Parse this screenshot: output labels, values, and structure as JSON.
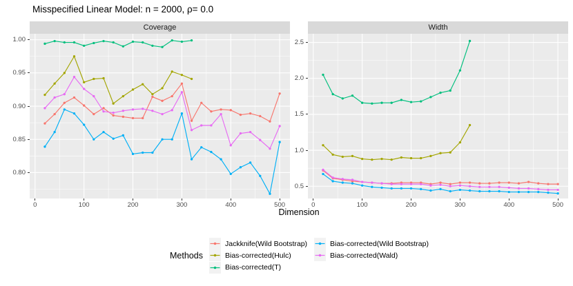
{
  "title": "Misspecified Linear Model: n = 2000, ρ= 0.0",
  "x_axis_title": "Dimension",
  "colors": {
    "panel_bg": "#EBEBEB",
    "strip_bg": "#D9D9D9",
    "grid": "#FFFFFF",
    "tick_text": "#4D4D4D",
    "tick_mark": "#333333"
  },
  "legend": {
    "title": "Methods",
    "columns": [
      [
        0,
        1,
        2
      ],
      [
        3,
        4
      ]
    ],
    "items": [
      {
        "label": "Jackknife(Wild Bootstrap)",
        "color": "#F8766D"
      },
      {
        "label": "Bias-corrected(Hulc)",
        "color": "#A3A500"
      },
      {
        "label": "Bias-corrected(T)",
        "color": "#00BF7D"
      },
      {
        "label": "Bias-corrected(Wild Bootstrap)",
        "color": "#00B0F6"
      },
      {
        "label": "Bias-corrected(Wald)",
        "color": "#E76BF3"
      }
    ]
  },
  "chart_data": [
    {
      "type": "line",
      "title": "Coverage",
      "xlabel": "Dimension",
      "xlim": [
        -11,
        521
      ],
      "ylim": [
        0.761,
        1.009
      ],
      "x_ticks": [
        0,
        100,
        200,
        300,
        400,
        500
      ],
      "x_tick_labels": [
        "0",
        "100",
        "200",
        "300",
        "400",
        "500"
      ],
      "x_minor": [
        50,
        150,
        250,
        350,
        450
      ],
      "y_ticks": [
        0.8,
        0.85,
        0.9,
        0.95,
        1.0
      ],
      "y_tick_labels": [
        "0.80",
        "0.85",
        "0.90",
        "0.95",
        "1.00"
      ],
      "y_minor": [
        0.775,
        0.825,
        0.875,
        0.925,
        0.975
      ],
      "grid": true,
      "series": [
        {
          "name": "Jackknife(Wild Bootstrap)",
          "color": "#F8766D",
          "x": [
            20,
            40,
            60,
            80,
            100,
            120,
            140,
            160,
            180,
            200,
            220,
            240,
            260,
            280,
            300,
            320,
            340,
            360,
            380,
            400,
            420,
            440,
            460,
            480,
            500
          ],
          "values": [
            0.874,
            0.888,
            0.905,
            0.913,
            0.901,
            0.888,
            0.897,
            0.886,
            0.884,
            0.882,
            0.882,
            0.914,
            0.908,
            0.915,
            0.934,
            0.878,
            0.905,
            0.892,
            0.895,
            0.894,
            0.887,
            0.889,
            0.885,
            0.877,
            0.919
          ]
        },
        {
          "name": "Bias-corrected(Hulc)",
          "color": "#A3A500",
          "x": [
            20,
            40,
            60,
            80,
            100,
            120,
            140,
            160,
            180,
            200,
            220,
            240,
            260,
            280,
            300,
            320
          ],
          "values": [
            0.917,
            0.934,
            0.95,
            0.975,
            0.936,
            0.941,
            0.942,
            0.904,
            0.915,
            0.925,
            0.933,
            0.918,
            0.927,
            0.952,
            0.947,
            0.941
          ]
        },
        {
          "name": "Bias-corrected(T)",
          "color": "#00BF7D",
          "x": [
            20,
            40,
            60,
            80,
            100,
            120,
            140,
            160,
            180,
            200,
            220,
            240,
            260,
            280,
            300,
            320
          ],
          "values": [
            0.994,
            0.998,
            0.996,
            0.996,
            0.991,
            0.995,
            0.998,
            0.996,
            0.99,
            0.997,
            0.996,
            0.991,
            0.989,
            0.999,
            0.997,
            0.999
          ]
        },
        {
          "name": "Bias-corrected(Wild Bootstrap)",
          "color": "#00B0F6",
          "x": [
            20,
            40,
            60,
            80,
            100,
            120,
            140,
            160,
            180,
            200,
            220,
            240,
            260,
            280,
            300,
            320,
            340,
            360,
            380,
            400,
            420,
            440,
            460,
            480,
            500
          ],
          "values": [
            0.839,
            0.861,
            0.895,
            0.889,
            0.872,
            0.85,
            0.861,
            0.851,
            0.856,
            0.828,
            0.83,
            0.83,
            0.85,
            0.85,
            0.889,
            0.82,
            0.838,
            0.831,
            0.82,
            0.798,
            0.808,
            0.815,
            0.795,
            0.768,
            0.846
          ]
        },
        {
          "name": "Bias-corrected(Wald)",
          "color": "#E76BF3",
          "x": [
            20,
            40,
            60,
            80,
            100,
            120,
            140,
            160,
            180,
            200,
            220,
            240,
            260,
            280,
            300,
            320,
            340,
            360,
            380,
            400,
            420,
            440,
            460,
            480,
            500
          ],
          "values": [
            0.897,
            0.913,
            0.918,
            0.944,
            0.926,
            0.915,
            0.892,
            0.89,
            0.893,
            0.895,
            0.896,
            0.893,
            0.888,
            0.894,
            0.921,
            0.864,
            0.871,
            0.871,
            0.888,
            0.841,
            0.859,
            0.861,
            0.849,
            0.836,
            0.87
          ]
        }
      ]
    },
    {
      "type": "line",
      "title": "Width",
      "xlabel": "Dimension",
      "xlim": [
        -11,
        521
      ],
      "ylim": [
        0.33,
        2.62
      ],
      "x_ticks": [
        0,
        100,
        200,
        300,
        400,
        500
      ],
      "x_tick_labels": [
        "0",
        "100",
        "200",
        "300",
        "400",
        "500"
      ],
      "x_minor": [
        50,
        150,
        250,
        350,
        450
      ],
      "y_ticks": [
        0.5,
        1.0,
        1.5,
        2.0,
        2.5
      ],
      "y_tick_labels": [
        "0.5",
        "1.0",
        "1.5",
        "2.0",
        "2.5"
      ],
      "y_minor": [
        0.75,
        1.25,
        1.75,
        2.25
      ],
      "grid": true,
      "series": [
        {
          "name": "Jackknife(Wild Bootstrap)",
          "color": "#F8766D",
          "x": [
            20,
            40,
            60,
            80,
            100,
            120,
            140,
            160,
            180,
            200,
            220,
            240,
            260,
            280,
            300,
            320,
            340,
            360,
            380,
            400,
            420,
            440,
            460,
            480,
            500
          ],
          "values": [
            0.72,
            0.61,
            0.59,
            0.57,
            0.56,
            0.55,
            0.54,
            0.54,
            0.55,
            0.55,
            0.55,
            0.53,
            0.55,
            0.53,
            0.55,
            0.55,
            0.54,
            0.54,
            0.55,
            0.55,
            0.54,
            0.56,
            0.54,
            0.53,
            0.53
          ]
        },
        {
          "name": "Bias-corrected(Hulc)",
          "color": "#A3A500",
          "x": [
            20,
            40,
            60,
            80,
            100,
            120,
            140,
            160,
            180,
            200,
            220,
            240,
            260,
            280,
            300,
            320
          ],
          "values": [
            1.07,
            0.94,
            0.91,
            0.92,
            0.88,
            0.87,
            0.88,
            0.87,
            0.9,
            0.89,
            0.89,
            0.92,
            0.96,
            0.97,
            1.11,
            1.35
          ]
        },
        {
          "name": "Bias-corrected(T)",
          "color": "#00BF7D",
          "x": [
            20,
            40,
            60,
            80,
            100,
            120,
            140,
            160,
            180,
            200,
            220,
            240,
            260,
            280,
            300,
            320
          ],
          "values": [
            2.05,
            1.78,
            1.72,
            1.76,
            1.66,
            1.65,
            1.66,
            1.66,
            1.7,
            1.67,
            1.68,
            1.74,
            1.8,
            1.83,
            2.11,
            2.52
          ]
        },
        {
          "name": "Bias-corrected(Wild Bootstrap)",
          "color": "#00B0F6",
          "x": [
            20,
            40,
            60,
            80,
            100,
            120,
            140,
            160,
            180,
            200,
            220,
            240,
            260,
            280,
            300,
            320,
            340,
            360,
            380,
            400,
            420,
            440,
            460,
            480,
            500
          ],
          "values": [
            0.67,
            0.57,
            0.55,
            0.54,
            0.51,
            0.49,
            0.48,
            0.47,
            0.47,
            0.47,
            0.46,
            0.44,
            0.46,
            0.43,
            0.45,
            0.44,
            0.43,
            0.43,
            0.43,
            0.42,
            0.42,
            0.42,
            0.42,
            0.41,
            0.4
          ]
        },
        {
          "name": "Bias-corrected(Wald)",
          "color": "#E76BF3",
          "x": [
            20,
            40,
            60,
            80,
            100,
            120,
            140,
            160,
            180,
            200,
            220,
            240,
            260,
            280,
            300,
            320,
            340,
            360,
            380,
            400,
            420,
            440,
            460,
            480,
            500
          ],
          "values": [
            0.73,
            0.62,
            0.6,
            0.59,
            0.56,
            0.55,
            0.54,
            0.53,
            0.53,
            0.53,
            0.53,
            0.51,
            0.52,
            0.5,
            0.51,
            0.5,
            0.49,
            0.49,
            0.49,
            0.48,
            0.47,
            0.47,
            0.46,
            0.45,
            0.45
          ]
        }
      ]
    }
  ]
}
